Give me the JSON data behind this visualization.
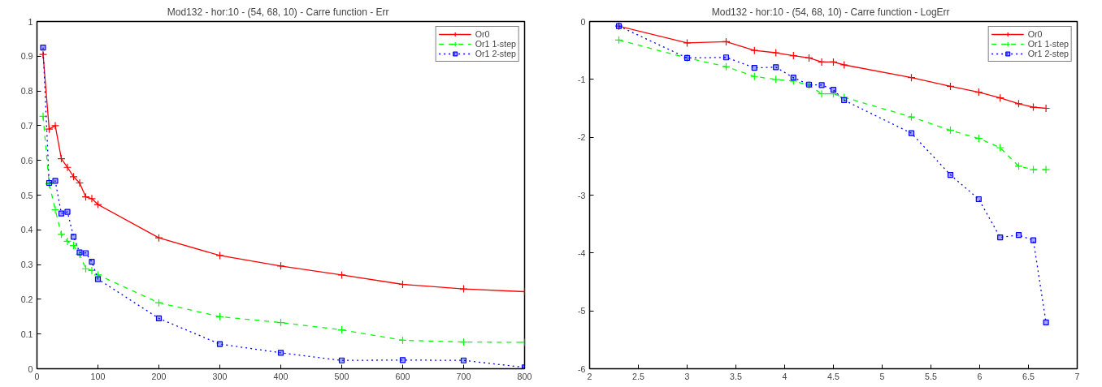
{
  "chart_data": [
    {
      "type": "line",
      "title": "Mod132 - hor:10 - (54,  68,  10) - Carre function - Err",
      "x": [
        10,
        20,
        30,
        40,
        50,
        60,
        70,
        80,
        90,
        100,
        200,
        300,
        400,
        500,
        600,
        700,
        800
      ],
      "xlim": [
        0,
        800
      ],
      "xticks": [
        0,
        100,
        200,
        300,
        400,
        500,
        600,
        700,
        800
      ],
      "ylim": [
        0,
        1
      ],
      "yticks": [
        0,
        0.1,
        0.2,
        0.3,
        0.4,
        0.5,
        0.6,
        0.7,
        0.8,
        0.9,
        1
      ],
      "grid": false,
      "legend": "top right",
      "series": [
        {
          "name": "Or0",
          "color": "#ff0000",
          "marker": "cross",
          "line_style": "solid",
          "values": [
            0.905,
            0.69,
            0.7,
            0.605,
            0.58,
            0.553,
            0.535,
            0.495,
            0.49,
            0.473,
            0.377,
            0.326,
            0.296,
            0.27,
            0.243,
            0.23,
            0.222
          ]
        },
        {
          "name": "Or1 1-step",
          "color": "#00ff00",
          "marker": "cross",
          "line_style": "dashed",
          "values": [
            0.727,
            0.533,
            0.458,
            0.387,
            0.367,
            0.355,
            0.33,
            0.288,
            0.283,
            0.27,
            0.19,
            0.15,
            0.133,
            0.112,
            0.082,
            0.077,
            0.076
          ]
        },
        {
          "name": "Or1 2-step",
          "color": "#0000ff",
          "marker": "square",
          "line_style": "dotted",
          "values": [
            0.925,
            0.535,
            0.541,
            0.447,
            0.452,
            0.38,
            0.335,
            0.333,
            0.308,
            0.258,
            0.145,
            0.071,
            0.046,
            0.024,
            0.025,
            0.024,
            0.004
          ]
        }
      ]
    },
    {
      "type": "line",
      "title": "Mod132 - hor:10 - (54,  68,  10) - Carre function - LogErr",
      "x": [
        2.3,
        3.0,
        3.4,
        3.69,
        3.91,
        4.09,
        4.25,
        4.38,
        4.5,
        4.61,
        5.3,
        5.7,
        5.99,
        6.21,
        6.4,
        6.55,
        6.68
      ],
      "xlim": [
        2,
        7
      ],
      "xticks": [
        2,
        2.5,
        3,
        3.5,
        4,
        4.5,
        5,
        5.5,
        6,
        6.5,
        7
      ],
      "ylim": [
        -6,
        0
      ],
      "yticks": [
        -6,
        -5,
        -4,
        -3,
        -2,
        -1,
        0
      ],
      "grid": false,
      "legend": "top right",
      "series": [
        {
          "name": "Or0",
          "color": "#ff0000",
          "marker": "cross",
          "line_style": "solid",
          "values": [
            -0.08,
            -0.37,
            -0.35,
            -0.5,
            -0.54,
            -0.59,
            -0.63,
            -0.7,
            -0.7,
            -0.75,
            -0.97,
            -1.12,
            -1.22,
            -1.32,
            -1.42,
            -1.48,
            -1.5
          ]
        },
        {
          "name": "Or1 1-step",
          "color": "#00ff00",
          "marker": "cross",
          "line_style": "dashed",
          "values": [
            -0.32,
            -0.63,
            -0.78,
            -0.95,
            -1.0,
            -1.03,
            -1.1,
            -1.25,
            -1.25,
            -1.31,
            -1.65,
            -1.88,
            -2.02,
            -2.18,
            -2.5,
            -2.56,
            -2.56
          ]
        },
        {
          "name": "Or1 2-step",
          "color": "#0000ff",
          "marker": "square",
          "line_style": "dotted",
          "values": [
            -0.08,
            -0.63,
            -0.62,
            -0.8,
            -0.79,
            -0.97,
            -1.09,
            -1.1,
            -1.18,
            -1.36,
            -1.93,
            -2.65,
            -3.07,
            -3.73,
            -3.69,
            -3.78,
            -5.2
          ]
        }
      ]
    }
  ]
}
